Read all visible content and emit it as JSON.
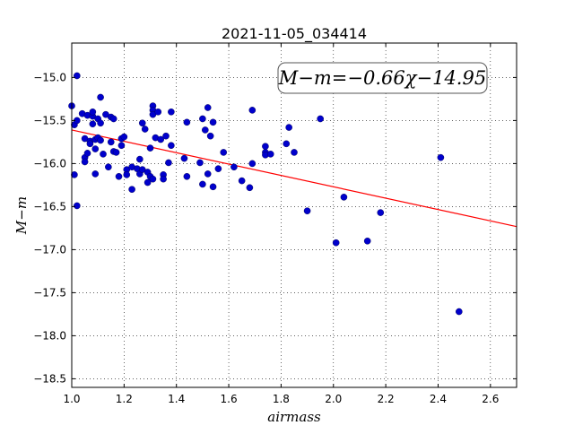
{
  "chart_data": {
    "type": "scatter",
    "title": "2021-11-05_034414",
    "xlabel": "airmass",
    "ylabel": "M−m",
    "xlim": [
      1.0,
      2.7
    ],
    "ylim": [
      -18.6,
      -14.6
    ],
    "xticks": [
      1.0,
      1.2,
      1.4,
      1.6,
      1.8,
      2.0,
      2.2,
      2.4,
      2.6
    ],
    "xtick_labels": [
      "1.0",
      "1.2",
      "1.4",
      "1.6",
      "1.8",
      "2.0",
      "2.2",
      "2.4",
      "2.6"
    ],
    "yticks": [
      -15.0,
      -15.5,
      -16.0,
      -16.5,
      -17.0,
      -17.5,
      -18.0,
      -18.5
    ],
    "ytick_labels": [
      "−15.0",
      "−15.5",
      "−16.0",
      "−16.5",
      "−17.0",
      "−17.5",
      "−18.0",
      "−18.5"
    ],
    "grid": true,
    "annotation": "M−m=−0.66χ−14.95",
    "fit": {
      "slope": -0.66,
      "intercept": -14.95,
      "color": "#ff0000"
    },
    "point_color": "#0000cc",
    "points": [
      [
        1.0,
        -15.33
      ],
      [
        1.01,
        -15.55
      ],
      [
        1.02,
        -14.98
      ],
      [
        1.01,
        -16.13
      ],
      [
        1.02,
        -16.49
      ],
      [
        1.02,
        -15.5
      ],
      [
        1.04,
        -15.42
      ],
      [
        1.05,
        -15.71
      ],
      [
        1.05,
        -15.93
      ],
      [
        1.05,
        -15.98
      ],
      [
        1.06,
        -15.44
      ],
      [
        1.06,
        -15.88
      ],
      [
        1.07,
        -15.74
      ],
      [
        1.07,
        -15.77
      ],
      [
        1.08,
        -15.45
      ],
      [
        1.08,
        -15.54
      ],
      [
        1.08,
        -15.4
      ],
      [
        1.09,
        -15.72
      ],
      [
        1.09,
        -15.83
      ],
      [
        1.09,
        -16.12
      ],
      [
        1.1,
        -15.7
      ],
      [
        1.1,
        -15.48
      ],
      [
        1.11,
        -15.53
      ],
      [
        1.11,
        -15.73
      ],
      [
        1.11,
        -15.23
      ],
      [
        1.12,
        -15.89
      ],
      [
        1.13,
        -15.43
      ],
      [
        1.14,
        -16.04
      ],
      [
        1.15,
        -15.75
      ],
      [
        1.15,
        -15.46
      ],
      [
        1.16,
        -15.48
      ],
      [
        1.16,
        -15.86
      ],
      [
        1.17,
        -15.87
      ],
      [
        1.18,
        -16.15
      ],
      [
        1.19,
        -15.71
      ],
      [
        1.19,
        -15.79
      ],
      [
        1.2,
        -15.69
      ],
      [
        1.21,
        -16.07
      ],
      [
        1.21,
        -16.13
      ],
      [
        1.23,
        -16.04
      ],
      [
        1.23,
        -16.3
      ],
      [
        1.25,
        -16.06
      ],
      [
        1.26,
        -15.95
      ],
      [
        1.26,
        -16.12
      ],
      [
        1.27,
        -15.53
      ],
      [
        1.27,
        -16.07
      ],
      [
        1.28,
        -15.6
      ],
      [
        1.29,
        -16.1
      ],
      [
        1.29,
        -16.22
      ],
      [
        1.3,
        -16.15
      ],
      [
        1.3,
        -15.82
      ],
      [
        1.31,
        -15.33
      ],
      [
        1.31,
        -16.18
      ],
      [
        1.31,
        -15.38
      ],
      [
        1.31,
        -15.43
      ],
      [
        1.32,
        -15.7
      ],
      [
        1.33,
        -15.4
      ],
      [
        1.34,
        -15.72
      ],
      [
        1.35,
        -16.13
      ],
      [
        1.35,
        -16.18
      ],
      [
        1.36,
        -15.68
      ],
      [
        1.37,
        -15.99
      ],
      [
        1.38,
        -15.79
      ],
      [
        1.38,
        -15.4
      ],
      [
        1.43,
        -15.94
      ],
      [
        1.44,
        -15.52
      ],
      [
        1.44,
        -16.15
      ],
      [
        1.49,
        -15.99
      ],
      [
        1.5,
        -15.48
      ],
      [
        1.5,
        -16.24
      ],
      [
        1.51,
        -15.61
      ],
      [
        1.52,
        -16.12
      ],
      [
        1.52,
        -15.35
      ],
      [
        1.53,
        -15.68
      ],
      [
        1.54,
        -15.52
      ],
      [
        1.54,
        -16.27
      ],
      [
        1.56,
        -16.06
      ],
      [
        1.58,
        -15.87
      ],
      [
        1.62,
        -16.04
      ],
      [
        1.65,
        -16.2
      ],
      [
        1.68,
        -16.28
      ],
      [
        1.69,
        -15.38
      ],
      [
        1.69,
        -16.0
      ],
      [
        1.74,
        -15.87
      ],
      [
        1.74,
        -15.8
      ],
      [
        1.74,
        -15.9
      ],
      [
        1.76,
        -15.89
      ],
      [
        1.82,
        -15.77
      ],
      [
        1.83,
        -15.58
      ],
      [
        1.85,
        -15.87
      ],
      [
        1.9,
        -16.55
      ],
      [
        1.95,
        -15.48
      ],
      [
        2.01,
        -16.92
      ],
      [
        2.04,
        -16.39
      ],
      [
        2.13,
        -16.9
      ],
      [
        2.18,
        -16.57
      ],
      [
        2.41,
        -15.93
      ],
      [
        2.48,
        -17.72
      ]
    ]
  }
}
